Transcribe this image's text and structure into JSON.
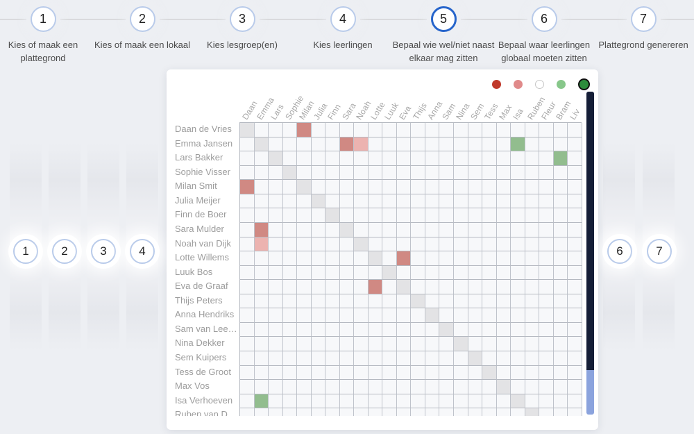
{
  "stepper": {
    "steps": [
      {
        "number": "1",
        "label": "Kies of maak een plattegrond",
        "active": false
      },
      {
        "number": "2",
        "label": "Kies of maak een lokaal",
        "active": false
      },
      {
        "number": "3",
        "label": "Kies lesgroep(en)",
        "active": false
      },
      {
        "number": "4",
        "label": "Kies leerlingen",
        "active": false
      },
      {
        "number": "5",
        "label": "Bepaal wie wel/niet naast elkaar mag zitten",
        "active": true
      },
      {
        "number": "6",
        "label": "Bepaal waar leerlingen globaal moeten zitten",
        "active": false
      },
      {
        "number": "7",
        "label": "Plattegrond genereren",
        "active": false
      }
    ]
  },
  "side_markers": {
    "left": [
      "1",
      "2",
      "3",
      "4"
    ],
    "right": [
      "6",
      "7"
    ]
  },
  "legend": {
    "options": [
      {
        "name": "strong-red",
        "color": "#c0392b",
        "selected": false
      },
      {
        "name": "light-red",
        "color": "#e08a8a",
        "selected": false
      },
      {
        "name": "neutral-white",
        "color": "#ffffff",
        "selected": false
      },
      {
        "name": "light-green",
        "color": "#87c78a",
        "selected": false
      },
      {
        "name": "strong-green",
        "color": "#2d8c3c",
        "selected": true
      }
    ]
  },
  "matrix": {
    "row_labels": [
      "Daan de Vries",
      "Emma Jansen",
      "Lars Bakker",
      "Sophie Visser",
      "Milan Smit",
      "Julia Meijer",
      "Finn de Boer",
      "Sara Mulder",
      "Noah van Dijk",
      "Lotte Willems",
      "Luuk Bos",
      "Eva de Graaf",
      "Thijs Peters",
      "Anna Hendriks",
      "Sam van Lee…",
      "Nina Dekker",
      "Sem Kuipers",
      "Tess de Groot",
      "Max Vos",
      "Isa Verhoeven",
      "Ruben van D…"
    ],
    "column_labels": [
      "Daan",
      "Emma",
      "Lars",
      "Sophie",
      "Milan",
      "Julia",
      "Finn",
      "Sara",
      "Noah",
      "Lotte",
      "Luuk",
      "Eva",
      "Thijs",
      "Anna",
      "Sam",
      "Nina",
      "Sem",
      "Tess",
      "Max",
      "Isa",
      "Ruben",
      "Fleur",
      "Bram",
      "Liv"
    ],
    "relation_colors": {
      "red": "#d08983",
      "pink": "#ecb3b0",
      "green": "#92bd8e",
      "self": "#e3e3e5"
    },
    "relations": [
      {
        "r": 0,
        "c": 4,
        "type": "red"
      },
      {
        "r": 1,
        "c": 7,
        "type": "red"
      },
      {
        "r": 1,
        "c": 8,
        "type": "pink"
      },
      {
        "r": 1,
        "c": 19,
        "type": "green"
      },
      {
        "r": 2,
        "c": 22,
        "type": "green"
      },
      {
        "r": 4,
        "c": 0,
        "type": "red"
      },
      {
        "r": 7,
        "c": 1,
        "type": "red"
      },
      {
        "r": 8,
        "c": 1,
        "type": "pink"
      },
      {
        "r": 9,
        "c": 11,
        "type": "red"
      },
      {
        "r": 11,
        "c": 9,
        "type": "red"
      },
      {
        "r": 19,
        "c": 1,
        "type": "green"
      }
    ]
  },
  "scrollbar": {
    "thumb_color": "#151e37",
    "track_color": "#8ba3dd"
  }
}
